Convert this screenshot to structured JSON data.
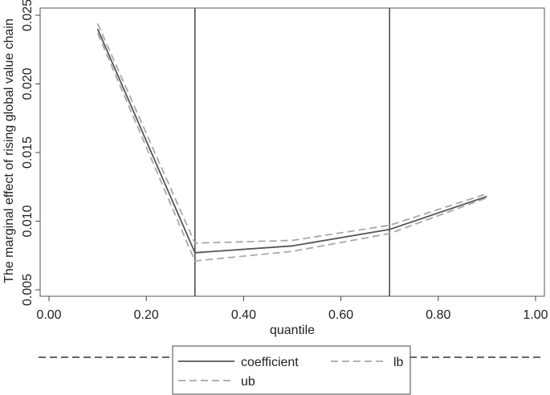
{
  "chart_data": {
    "type": "line",
    "xlabel": "quantile",
    "ylabel": "The marginal effect of rising global value chain",
    "xlim": [
      0,
      1
    ],
    "ylim": [
      0.005,
      0.025
    ],
    "xticks": [
      {
        "value": 0.0,
        "label": "0.00"
      },
      {
        "value": 0.2,
        "label": "0.20"
      },
      {
        "value": 0.4,
        "label": "0.40"
      },
      {
        "value": 0.6,
        "label": "0.60"
      },
      {
        "value": 0.8,
        "label": "0.80"
      },
      {
        "value": 1.0,
        "label": "1.00"
      }
    ],
    "yticks": [
      {
        "value": 0.005,
        "label": "0.005"
      },
      {
        "value": 0.01,
        "label": "0.010"
      },
      {
        "value": 0.015,
        "label": "0.015"
      },
      {
        "value": 0.02,
        "label": "0.020"
      },
      {
        "value": 0.025,
        "label": "0.025"
      }
    ],
    "vlines": [
      0.3,
      0.7
    ],
    "grid": false,
    "legend_position": "bottom",
    "x": [
      0.1,
      0.3,
      0.5,
      0.7,
      0.9
    ],
    "series": [
      {
        "name": "coefficient",
        "style": "solid",
        "color": "#555555",
        "values": [
          0.024,
          0.0077,
          0.0082,
          0.0094,
          0.0118
        ]
      },
      {
        "name": "lb",
        "style": "dashed",
        "color": "#a8a8a8",
        "values": [
          0.0237,
          0.0071,
          0.0078,
          0.0091,
          0.0117
        ]
      },
      {
        "name": "ub",
        "style": "dashed",
        "color": "#a8a8a8",
        "values": [
          0.0244,
          0.0084,
          0.0086,
          0.0097,
          0.012
        ]
      }
    ]
  }
}
